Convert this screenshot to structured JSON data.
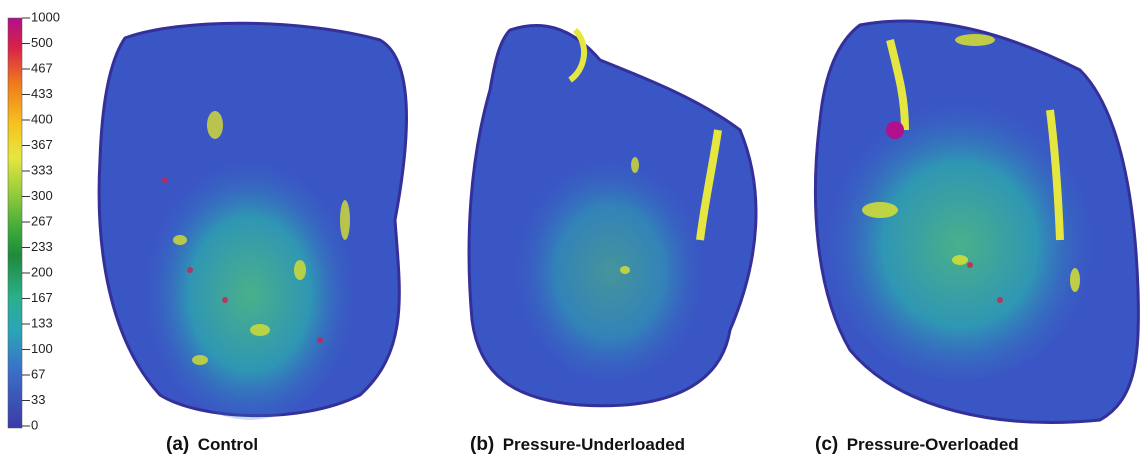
{
  "colorbar": {
    "ticks": [
      "1000",
      "500",
      "467",
      "433",
      "400",
      "367",
      "333",
      "300",
      "267",
      "233",
      "200",
      "167",
      "133",
      "100",
      "67",
      "33",
      "0"
    ]
  },
  "panels": [
    {
      "letter": "(a)",
      "name": "Control"
    },
    {
      "letter": "(b)",
      "name": "Pressure-Underloaded"
    },
    {
      "letter": "(c)",
      "name": "Pressure-Overloaded"
    }
  ]
}
